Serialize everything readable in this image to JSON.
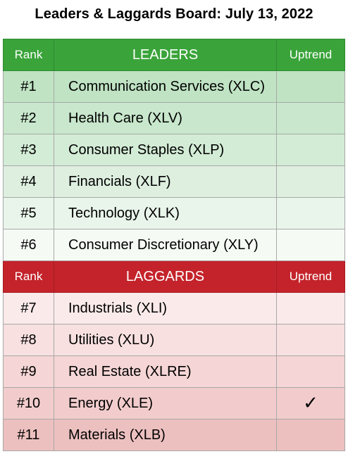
{
  "title": "Leaders & Laggards Board: July 13, 2022",
  "leaders_header": {
    "rank": "Rank",
    "group": "LEADERS",
    "uptrend": "Uptrend"
  },
  "leaders": [
    {
      "rank": "#1",
      "name": "Communication Services (XLC)",
      "uptrend": ""
    },
    {
      "rank": "#2",
      "name": "Health Care (XLV)",
      "uptrend": ""
    },
    {
      "rank": "#3",
      "name": "Consumer Staples (XLP)",
      "uptrend": ""
    },
    {
      "rank": "#4",
      "name": "Financials (XLF)",
      "uptrend": ""
    },
    {
      "rank": "#5",
      "name": "Technology (XLK)",
      "uptrend": ""
    },
    {
      "rank": "#6",
      "name": "Consumer Discretionary (XLY)",
      "uptrend": ""
    }
  ],
  "laggards_header": {
    "rank": "Rank",
    "group": "LAGGARDS",
    "uptrend": "Uptrend"
  },
  "laggards": [
    {
      "rank": "#7",
      "name": "Industrials (XLI)",
      "uptrend": ""
    },
    {
      "rank": "#8",
      "name": "Utilities (XLU)",
      "uptrend": ""
    },
    {
      "rank": "#9",
      "name": "Real Estate (XLRE)",
      "uptrend": ""
    },
    {
      "rank": "#10",
      "name": "Energy (XLE)",
      "uptrend": "✓"
    },
    {
      "rank": "#11",
      "name": "Materials (XLB)",
      "uptrend": ""
    }
  ],
  "colors": {
    "leaders_header": "#3aa43a",
    "laggards_header": "#c4232b"
  }
}
